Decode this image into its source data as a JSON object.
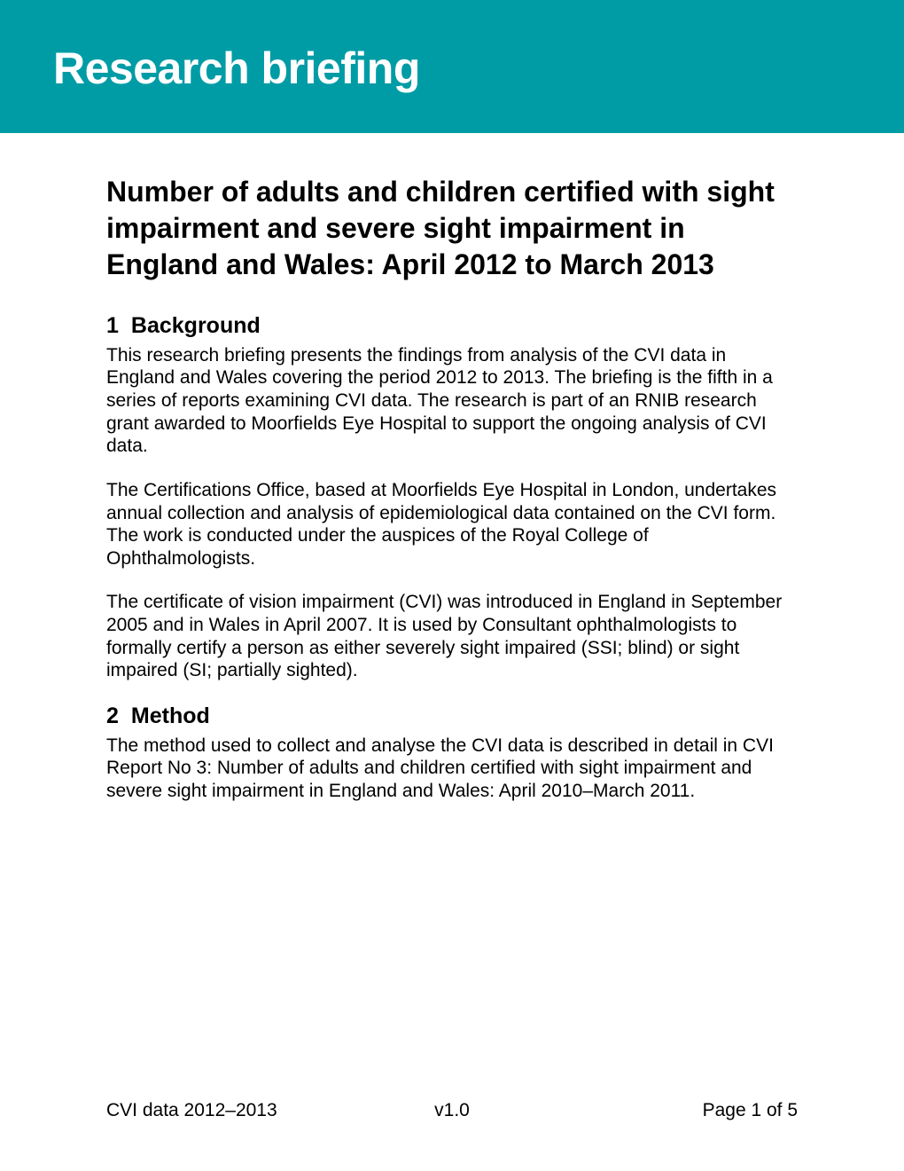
{
  "banner": {
    "title": "Research briefing",
    "background_color": "#009ca6",
    "text_color": "#ffffff"
  },
  "document": {
    "title": "Number of adults and children certified with sight impairment and severe sight impairment in England and Wales: April 2012 to March 2013"
  },
  "sections": [
    {
      "number": "1",
      "heading": "Background",
      "paragraphs": [
        "This research briefing presents the findings from analysis of the CVI data in England and Wales covering the period 2012 to 2013. The briefing is the fifth in a series of reports examining CVI data.  The research is part of an RNIB research grant awarded to Moorfields Eye Hospital to support the ongoing analysis of CVI data.",
        "The Certifications Office, based at Moorfields Eye Hospital in London, undertakes annual collection and analysis of epidemiological data contained on the CVI form. The work is conducted under the auspices of the Royal College of Ophthalmologists.",
        "The certificate of vision impairment (CVI) was introduced in England in September 2005 and in Wales in April 2007. It is used by Consultant ophthalmologists to formally certify a person as either severely sight impaired (SSI; blind) or sight impaired (SI; partially sighted)."
      ]
    },
    {
      "number": "2",
      "heading": "Method",
      "paragraphs": [
        "The method used to collect and analyse the CVI data is described in detail in CVI Report No 3: Number of adults and children certified with sight impairment and severe sight impairment in England and Wales: April 2010–March 2011."
      ]
    }
  ],
  "footer": {
    "left": "CVI data 2012–2013",
    "center": "v1.0",
    "right": "Page 1 of 5"
  }
}
